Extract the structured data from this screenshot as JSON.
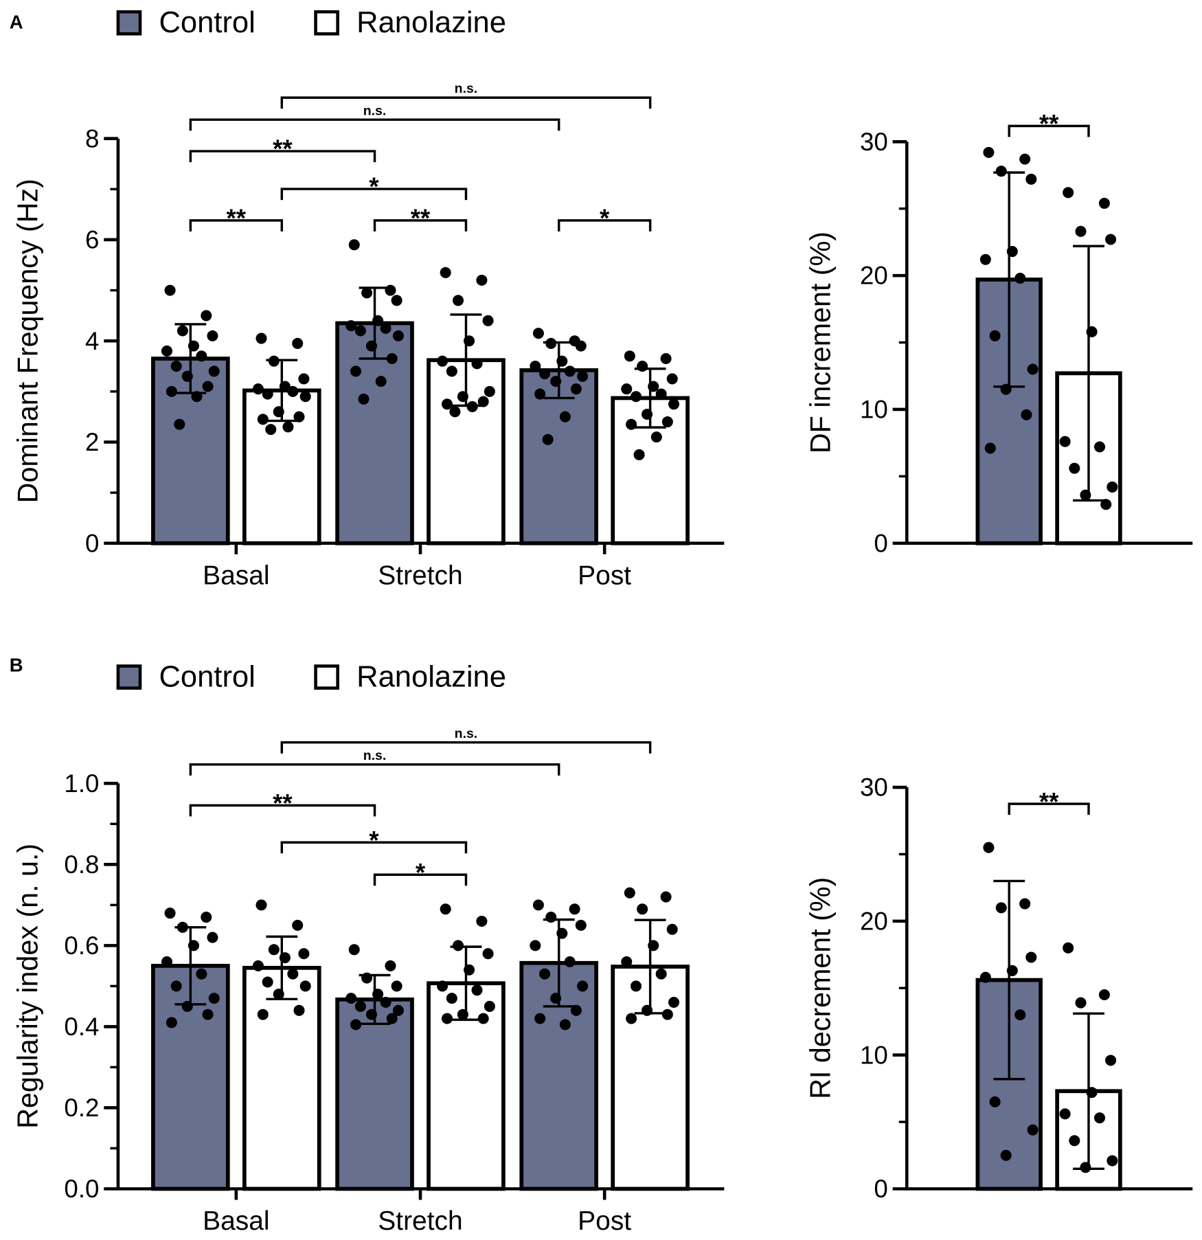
{
  "panel_labels": [
    "A",
    "B"
  ],
  "chart_data": [
    {
      "type": "bar",
      "ylabel": "Dominant Frequency (Hz)",
      "categories": [
        "Basal",
        "Stretch",
        "Post"
      ],
      "ylim": [
        0,
        8
      ],
      "yticks": [
        0,
        2,
        4,
        6,
        8
      ],
      "yminor": [
        1,
        3,
        5,
        7
      ],
      "series": [
        {
          "name": "Control",
          "color": "#687090",
          "values": [
            3.65,
            4.35,
            3.42
          ],
          "errors": [
            0.68,
            0.7,
            0.55
          ],
          "points": [
            [
              5.0,
              4.5,
              4.2,
              4.1,
              3.9,
              3.8,
              3.7,
              3.5,
              3.4,
              3.3,
              3.1,
              3.0,
              2.9,
              2.35
            ],
            [
              5.9,
              5.0,
              4.95,
              4.8,
              4.4,
              4.3,
              4.25,
              4.2,
              4.1,
              3.9,
              3.65,
              3.4,
              3.2,
              2.85
            ],
            [
              4.15,
              4.0,
              3.95,
              3.9,
              3.6,
              3.5,
              3.4,
              3.35,
              3.3,
              3.2,
              3.05,
              2.95,
              2.5,
              2.05
            ]
          ]
        },
        {
          "name": "Ranolazine",
          "color": "#ffffff",
          "values": [
            3.02,
            3.62,
            2.87
          ],
          "errors": [
            0.6,
            0.9,
            0.58
          ],
          "points": [
            [
              4.05,
              3.95,
              3.6,
              3.25,
              3.1,
              3.05,
              3.0,
              2.95,
              2.9,
              2.6,
              2.5,
              2.45,
              2.3,
              2.25
            ],
            [
              5.35,
              5.2,
              4.8,
              4.4,
              4.0,
              3.6,
              3.55,
              3.4,
              3.0,
              2.9,
              2.8,
              2.75,
              2.7,
              2.6
            ],
            [
              3.7,
              3.65,
              3.5,
              3.25,
              3.1,
              3.05,
              2.95,
              2.9,
              2.75,
              2.55,
              2.4,
              2.35,
              2.1,
              1.75
            ]
          ]
        }
      ],
      "brackets": [
        {
          "from": [
            0,
            1
          ],
          "to": [
            2,
            1
          ],
          "label": "n.s."
        },
        {
          "from": [
            0,
            0
          ],
          "to": [
            2,
            0
          ],
          "label": "n.s."
        },
        {
          "from": [
            0,
            0
          ],
          "to": [
            1,
            0
          ],
          "label": "**"
        },
        {
          "from": [
            0,
            1
          ],
          "to": [
            1,
            1
          ],
          "label": "*"
        },
        {
          "from": [
            0,
            0
          ],
          "to": [
            0,
            1
          ],
          "label": "**"
        },
        {
          "from": [
            1,
            0
          ],
          "to": [
            1,
            1
          ],
          "label": "**"
        },
        {
          "from": [
            2,
            0
          ],
          "to": [
            2,
            1
          ],
          "label": "*"
        }
      ]
    },
    {
      "type": "bar",
      "ylabel": "DF increment (%)",
      "ylim": [
        0,
        30
      ],
      "yticks": [
        0,
        10,
        20,
        30
      ],
      "yminor": [
        5,
        15,
        25
      ],
      "series": [
        {
          "color": "#687090",
          "values": [
            19.7
          ],
          "errors": [
            8.0
          ],
          "points": [
            [
              29.2,
              28.7,
              27.8,
              27.2,
              21.8,
              21.2,
              19.8,
              15.5,
              13.0,
              11.5,
              9.6,
              7.1
            ]
          ]
        },
        {
          "color": "#ffffff",
          "values": [
            12.7
          ],
          "errors": [
            9.5
          ],
          "points": [
            [
              26.2,
              25.4,
              23.3,
              22.7,
              15.8,
              7.6,
              7.2,
              5.6,
              4.2,
              3.6,
              2.9
            ]
          ]
        }
      ],
      "brackets": [
        {
          "from": [
            0,
            0
          ],
          "to": [
            0,
            1
          ],
          "label": "**"
        }
      ]
    },
    {
      "type": "bar",
      "ylabel": "Regularity index (n. u.)",
      "categories": [
        "Basal",
        "Stretch",
        "Post"
      ],
      "ylim": [
        0,
        1
      ],
      "yticks": [
        {
          "value": 0,
          "label": "0.0"
        },
        0.2,
        0.4,
        0.6,
        0.8,
        {
          "value": 1,
          "label": "1.0"
        }
      ],
      "yminor": [
        0.1,
        0.3,
        0.5,
        0.7,
        0.9
      ],
      "series": [
        {
          "name": "Control",
          "color": "#687090",
          "values": [
            0.55,
            0.467,
            0.557
          ],
          "errors": [
            0.095,
            0.06,
            0.107
          ],
          "points": [
            [
              0.68,
              0.67,
              0.645,
              0.62,
              0.6,
              0.56,
              0.53,
              0.5,
              0.47,
              0.45,
              0.43,
              0.41
            ],
            [
              0.59,
              0.55,
              0.52,
              0.5,
              0.48,
              0.47,
              0.46,
              0.45,
              0.44,
              0.43,
              0.42,
              0.405
            ],
            [
              0.7,
              0.69,
              0.67,
              0.65,
              0.63,
              0.6,
              0.56,
              0.53,
              0.5,
              0.47,
              0.44,
              0.42,
              0.405
            ]
          ]
        },
        {
          "name": "Ranolazine",
          "color": "#ffffff",
          "values": [
            0.545,
            0.507,
            0.548
          ],
          "errors": [
            0.077,
            0.09,
            0.115
          ],
          "points": [
            [
              0.7,
              0.65,
              0.59,
              0.58,
              0.57,
              0.55,
              0.53,
              0.51,
              0.5,
              0.48,
              0.44,
              0.43
            ],
            [
              0.69,
              0.66,
              0.6,
              0.58,
              0.54,
              0.5,
              0.49,
              0.47,
              0.45,
              0.43,
              0.42,
              0.42
            ],
            [
              0.73,
              0.72,
              0.69,
              0.64,
              0.6,
              0.56,
              0.53,
              0.5,
              0.46,
              0.44,
              0.43,
              0.42
            ]
          ]
        }
      ],
      "brackets": [
        {
          "from": [
            0,
            1
          ],
          "to": [
            2,
            1
          ],
          "label": "n.s."
        },
        {
          "from": [
            0,
            0
          ],
          "to": [
            2,
            0
          ],
          "label": "n.s."
        },
        {
          "from": [
            0,
            0
          ],
          "to": [
            1,
            0
          ],
          "label": "**"
        },
        {
          "from": [
            0,
            1
          ],
          "to": [
            1,
            1
          ],
          "label": "*"
        },
        {
          "from": [
            1,
            0
          ],
          "to": [
            1,
            1
          ],
          "label": "*"
        }
      ]
    },
    {
      "type": "bar",
      "ylabel": "RI decrement (%)",
      "ylim": [
        0,
        30
      ],
      "yticks": [
        0,
        10,
        20,
        30
      ],
      "yminor": [
        5,
        15,
        25
      ],
      "series": [
        {
          "color": "#687090",
          "values": [
            15.6
          ],
          "errors": [
            7.4
          ],
          "points": [
            [
              25.5,
              21.3,
              21.0,
              17.3,
              16.3,
              15.8,
              13.0,
              6.5,
              4.4,
              2.5
            ]
          ]
        },
        {
          "color": "#ffffff",
          "values": [
            7.3
          ],
          "errors": [
            5.8
          ],
          "points": [
            [
              18.0,
              14.5,
              13.9,
              9.6,
              7.2,
              5.6,
              5.3,
              3.6,
              2.1,
              1.6
            ]
          ]
        }
      ],
      "brackets": [
        {
          "from": [
            0,
            0
          ],
          "to": [
            0,
            1
          ],
          "label": "**"
        }
      ]
    }
  ]
}
